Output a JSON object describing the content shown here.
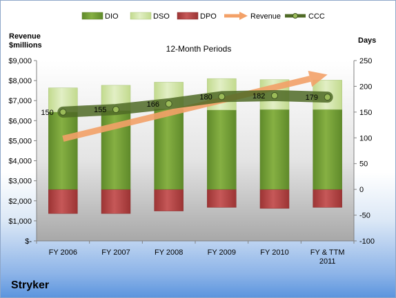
{
  "company_name": "Stryker",
  "chart_data": {
    "type": "bar",
    "title": "12-Month Periods",
    "ylabel": "Revenue $millions",
    "ylabel_lines": [
      "Revenue",
      "$millions"
    ],
    "y2label": "Days",
    "categories": [
      "FY 2006",
      "FY 2007",
      "FY 2008",
      "FY 2009",
      "FY 2010",
      "FY & TTM 2011"
    ],
    "category_lines": [
      [
        "FY 2006"
      ],
      [
        "FY 2007"
      ],
      [
        "FY 2008"
      ],
      [
        "FY 2009"
      ],
      [
        "FY 2010"
      ],
      [
        "FY & TTM",
        "2011"
      ]
    ],
    "ylim": [
      0,
      9000
    ],
    "y_ticks": [
      0,
      1000,
      2000,
      3000,
      4000,
      5000,
      6000,
      7000,
      8000,
      9000
    ],
    "y_tick_labels": [
      "$-",
      "$1,000",
      "$2,000",
      "$3,000",
      "$4,000",
      "$5,000",
      "$6,000",
      "$7,000",
      "$8,000",
      "$9,000"
    ],
    "y2lim": [
      -100,
      250
    ],
    "y2_ticks": [
      -100,
      -50,
      0,
      50,
      100,
      150,
      200,
      250
    ],
    "y2_tick_labels": [
      "-100",
      "-50",
      "0",
      "50",
      "100",
      "150",
      "200",
      "250"
    ],
    "legend_position": "top",
    "grid": false,
    "series": [
      {
        "name": "DIO",
        "axis": "days",
        "kind": "stacked-bar",
        "values": [
          150,
          153,
          156,
          154,
          155,
          155
        ],
        "color": "#76a237"
      },
      {
        "name": "DSO",
        "axis": "days",
        "kind": "stacked-bar",
        "values": [
          47,
          49,
          52,
          61,
          58,
          57
        ],
        "color": "#d3e6a8"
      },
      {
        "name": "DPO",
        "axis": "days",
        "kind": "negative-bar",
        "values": [
          -47,
          -47,
          -42,
          -35,
          -37,
          -35
        ],
        "color": "#b84a4a"
      },
      {
        "name": "Revenue",
        "axis": "revenue",
        "kind": "trend-arrow",
        "values": [
          5100,
          6000,
          6700,
          6700,
          7300,
          8300
        ],
        "color": "#f3a168"
      },
      {
        "name": "CCC",
        "axis": "days",
        "kind": "line",
        "values": [
          150,
          155,
          166,
          180,
          182,
          179
        ],
        "labels": [
          "150",
          "155",
          "166",
          "180",
          "182",
          "179"
        ],
        "color": "#5a7a2c"
      }
    ]
  }
}
